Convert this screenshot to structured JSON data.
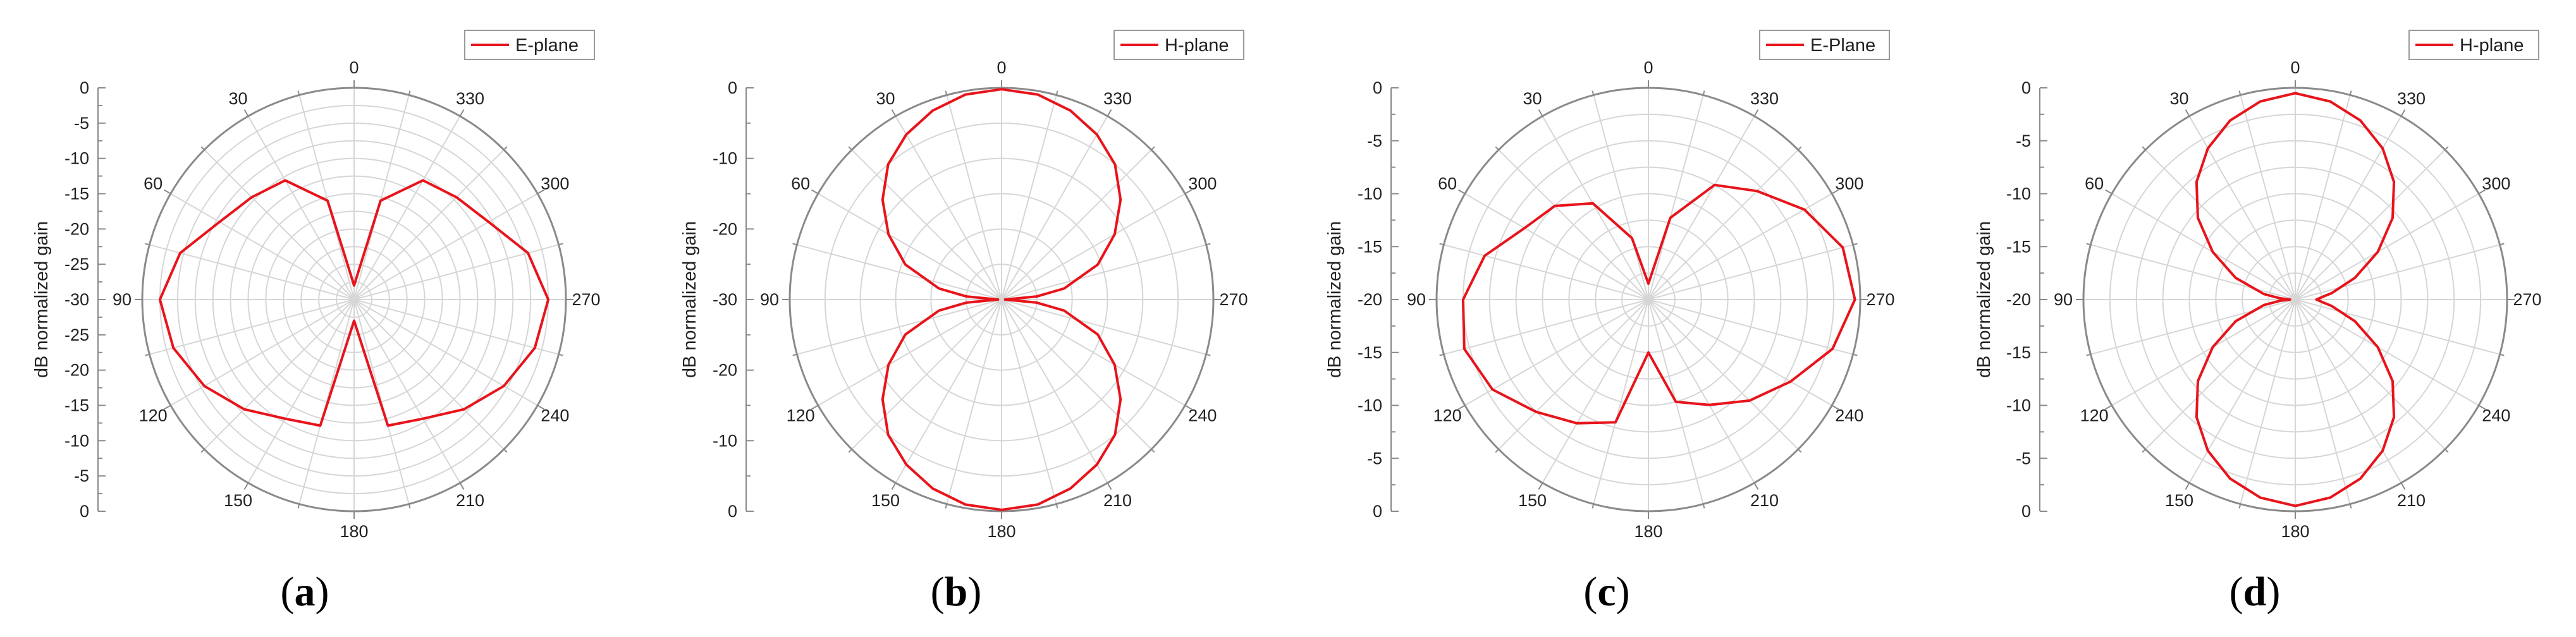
{
  "figure": {
    "panels": [
      {
        "id": "a",
        "label_open": "(",
        "label_letter": "a",
        "label_close": ")",
        "legend": "E-plane",
        "ylabel": "dB normalized gain"
      },
      {
        "id": "b",
        "label_open": "(",
        "label_letter": "b",
        "label_close": ")",
        "legend": "H-plane",
        "ylabel": "dB normalized gain"
      },
      {
        "id": "c",
        "label_open": "(",
        "label_letter": "c",
        "label_close": ")",
        "legend": "E-Plane",
        "ylabel": "dB normalized gain"
      },
      {
        "id": "d",
        "label_open": "(",
        "label_letter": "d",
        "label_close": ")",
        "legend": "H-plane",
        "ylabel": "dB normalized gain"
      }
    ]
  },
  "chart_data": [
    {
      "type": "polar-line",
      "legend": "E-plane",
      "ylabel": "dB normalized gain",
      "radial_range_db": [
        -30,
        0
      ],
      "radial_ticks": [
        0,
        -5,
        -10,
        -15,
        -20,
        -25,
        -30
      ],
      "axis_tick_labels": [
        "0",
        "-5",
        "-10",
        "-15",
        "-20",
        "-25",
        "-30",
        "-25",
        "-20",
        "-15",
        "-10",
        "-5",
        "0"
      ],
      "angle_labels": [
        "0",
        "30",
        "60",
        "90",
        "120",
        "150",
        "180",
        "210",
        "240",
        "270",
        "300",
        "330"
      ],
      "line_color": "#e8141b",
      "theta_deg": [
        0,
        15,
        30,
        45,
        60,
        75,
        90,
        105,
        120,
        135,
        150,
        165,
        180,
        195,
        210,
        225,
        240,
        255,
        270,
        285,
        300,
        315,
        330,
        345,
        360
      ],
      "gain_db": [
        -28,
        -15.5,
        -10.5,
        -9.5,
        -8,
        -4.5,
        -2.5,
        -3.5,
        -5.5,
        -8,
        -10.5,
        -11.5,
        -27,
        -11.5,
        -10.5,
        -8,
        -5.5,
        -3.5,
        -2.5,
        -4.5,
        -8,
        -9.5,
        -10.5,
        -15.5,
        -28
      ]
    },
    {
      "type": "polar-line",
      "legend": "H-plane",
      "ylabel": "dB normalized gain",
      "radial_range_db": [
        -30,
        0
      ],
      "radial_ticks": [
        0,
        -10,
        -20,
        -30
      ],
      "axis_tick_labels": [
        "0",
        "-10",
        "-20",
        "-30",
        "-20",
        "-10",
        "0"
      ],
      "angle_labels": [
        "0",
        "30",
        "60",
        "90",
        "120",
        "150",
        "180",
        "210",
        "240",
        "270",
        "300",
        "330"
      ],
      "line_color": "#e8141b",
      "theta_deg": [
        0,
        10,
        20,
        30,
        40,
        50,
        60,
        70,
        80,
        85,
        90,
        95,
        100,
        110,
        120,
        130,
        140,
        150,
        160,
        170,
        180,
        190,
        200,
        210,
        220,
        230,
        240,
        250,
        260,
        265,
        270,
        275,
        280,
        290,
        300,
        310,
        320,
        330,
        340,
        350,
        360
      ],
      "gain_db": [
        -0.2,
        -0.5,
        -1.5,
        -3,
        -5,
        -8,
        -11.5,
        -15.5,
        -21,
        -25,
        -29.5,
        -25,
        -21,
        -15.5,
        -11.5,
        -8,
        -5,
        -3,
        -1.5,
        -0.5,
        -0.2,
        -0.5,
        -1.5,
        -3,
        -5,
        -8,
        -11.5,
        -15.5,
        -21,
        -25,
        -29.5,
        -25,
        -21,
        -15.5,
        -11.5,
        -8,
        -5,
        -3,
        -1.5,
        -0.5,
        -0.2
      ]
    },
    {
      "type": "polar-line",
      "legend": "E-Plane",
      "ylabel": "dB normalized gain",
      "radial_range_db": [
        -20,
        0
      ],
      "radial_ticks": [
        0,
        -5,
        -10,
        -15,
        -20
      ],
      "axis_tick_labels": [
        "0",
        "-5",
        "-10",
        "-15",
        "-20",
        "-15",
        "-10",
        "-5",
        "0"
      ],
      "angle_labels": [
        "0",
        "30",
        "60",
        "90",
        "120",
        "150",
        "180",
        "210",
        "240",
        "270",
        "300",
        "330"
      ],
      "line_color": "#e8141b",
      "theta_deg": [
        0,
        15,
        30,
        45,
        60,
        75,
        90,
        105,
        120,
        135,
        150,
        165,
        180,
        195,
        210,
        225,
        240,
        255,
        270,
        285,
        300,
        315,
        330,
        345,
        360
      ],
      "gain_db": [
        -18.5,
        -14,
        -9.5,
        -7.5,
        -6.5,
        -4,
        -2.5,
        -2,
        -3,
        -5,
        -6.5,
        -8,
        -15,
        -10,
        -8.5,
        -6.5,
        -4.5,
        -2,
        -0.5,
        -1,
        -3,
        -5.5,
        -7.5,
        -12,
        -18.5
      ]
    },
    {
      "type": "polar-line",
      "legend": "H-plane",
      "ylabel": "dB normalized gain",
      "radial_range_db": [
        -20,
        0
      ],
      "radial_ticks": [
        0,
        -5,
        -10,
        -15,
        -20
      ],
      "axis_tick_labels": [
        "0",
        "-5",
        "-10",
        "-15",
        "-20",
        "-15",
        "-10",
        "-5",
        "0"
      ],
      "angle_labels": [
        "0",
        "30",
        "60",
        "90",
        "120",
        "150",
        "180",
        "210",
        "240",
        "270",
        "300",
        "330"
      ],
      "line_color": "#e8141b",
      "theta_deg": [
        0,
        10,
        20,
        30,
        40,
        50,
        60,
        70,
        80,
        85,
        90,
        95,
        100,
        110,
        120,
        130,
        140,
        150,
        160,
        170,
        180,
        190,
        200,
        210,
        220,
        230,
        240,
        250,
        260,
        265,
        270,
        275,
        280,
        290,
        300,
        310,
        320,
        330,
        340,
        350,
        360
      ],
      "gain_db": [
        -0.5,
        -1,
        -2,
        -3.5,
        -5.5,
        -8,
        -11,
        -14,
        -17,
        -18.5,
        -19.5,
        -18.5,
        -17,
        -14,
        -11,
        -8,
        -5.5,
        -3.5,
        -2,
        -1,
        -0.5,
        -1,
        -2,
        -3.5,
        -5.5,
        -8,
        -11,
        -14,
        -16.5,
        -17.5,
        -18,
        -17.5,
        -16.5,
        -14,
        -11,
        -8,
        -5.5,
        -3.5,
        -2,
        -1,
        -0.5
      ]
    }
  ]
}
